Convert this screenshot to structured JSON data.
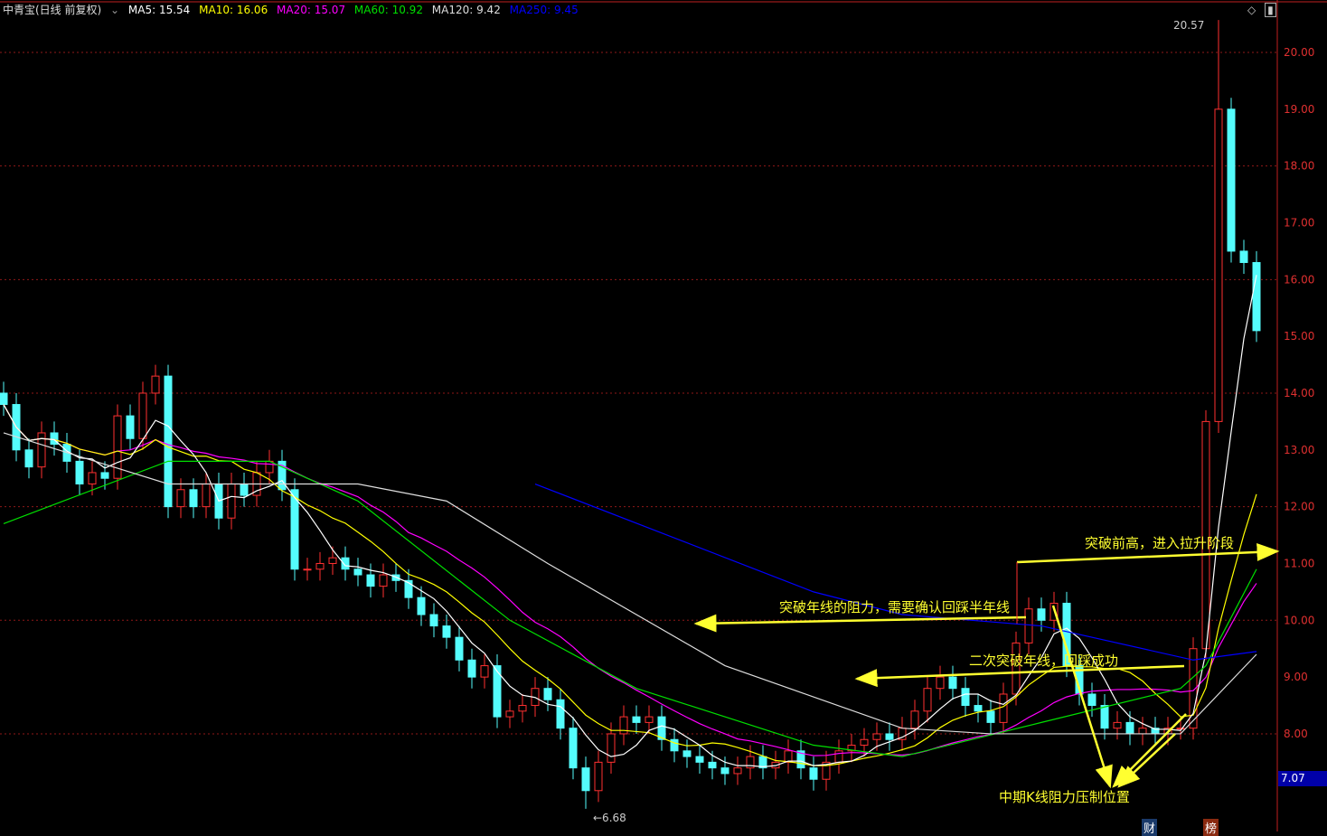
{
  "header": {
    "title": "中青宝(日线 前复权)",
    "ma": [
      {
        "label": "MA5: 15.54",
        "color": "#ffffff"
      },
      {
        "label": "MA10: 16.06",
        "color": "#ffff00"
      },
      {
        "label": "MA20: 15.07",
        "color": "#ff00ff"
      },
      {
        "label": "MA60: 10.92",
        "color": "#00e000"
      },
      {
        "label": "MA120: 9.42",
        "color": "#dddddd"
      },
      {
        "label": "MA250: 9.45",
        "color": "#0000ff"
      }
    ]
  },
  "icons": {
    "diamond": "◇",
    "panel": "▮"
  },
  "current_price": "7.07",
  "badges": [
    "财",
    "榜"
  ],
  "chart_data": {
    "type": "candlestick",
    "ylim": [
      6.2,
      20.9
    ],
    "yticks": [
      "8.00",
      "9.00",
      "10.00",
      "11.00",
      "12.00",
      "13.00",
      "14.00",
      "15.00",
      "16.00",
      "17.00",
      "18.00",
      "19.00",
      "20.00"
    ],
    "grid_levels": [
      8,
      10,
      12,
      14,
      16,
      18,
      20
    ],
    "up_color": "#ff3030",
    "down_color": "#54fcfc",
    "close": [
      13.8,
      13.0,
      12.7,
      13.3,
      13.1,
      12.8,
      12.4,
      12.6,
      12.5,
      13.6,
      13.2,
      14.0,
      14.3,
      12.0,
      12.3,
      12.0,
      12.4,
      11.8,
      12.4,
      12.2,
      12.6,
      12.8,
      12.3,
      10.9,
      10.9,
      11.0,
      11.1,
      10.9,
      10.8,
      10.6,
      10.8,
      10.7,
      10.4,
      10.1,
      9.9,
      9.7,
      9.3,
      9.0,
      9.2,
      8.3,
      8.4,
      8.5,
      8.8,
      8.6,
      8.1,
      7.4,
      7.0,
      7.5,
      8.0,
      8.3,
      8.2,
      8.3,
      7.9,
      7.7,
      7.6,
      7.5,
      7.4,
      7.3,
      7.4,
      7.6,
      7.4,
      7.5,
      7.7,
      7.4,
      7.2,
      7.5,
      7.7,
      7.8,
      7.9,
      8.0,
      7.9,
      8.1,
      8.4,
      8.8,
      9.0,
      8.8,
      8.5,
      8.4,
      8.2,
      8.7,
      9.6,
      10.2,
      10.0,
      10.3,
      9.2,
      8.7,
      8.5,
      8.1,
      8.2,
      8.0,
      8.1,
      8.0,
      8.1,
      8.1,
      9.5,
      13.5,
      19.0,
      16.5,
      16.3,
      15.1
    ],
    "high_marker": {
      "label": "20.57",
      "value": 20.57,
      "index": 96
    },
    "low_marker": {
      "label": "6.68",
      "value": 6.68,
      "index": 46
    },
    "ma60": [
      [
        0,
        11.7
      ],
      [
        13,
        12.8
      ],
      [
        21,
        12.8
      ],
      [
        28,
        12.1
      ],
      [
        40,
        10.0
      ],
      [
        50,
        8.8
      ],
      [
        64,
        7.8
      ],
      [
        71,
        7.6
      ],
      [
        82,
        8.2
      ],
      [
        93,
        8.8
      ],
      [
        95,
        9.2
      ],
      [
        99,
        10.9
      ]
    ],
    "ma120": [
      [
        0,
        13.3
      ],
      [
        13,
        12.4
      ],
      [
        28,
        12.4
      ],
      [
        35,
        12.1
      ],
      [
        43,
        11.0
      ],
      [
        57,
        9.2
      ],
      [
        71,
        8.1
      ],
      [
        78,
        8.0
      ],
      [
        93,
        8.0
      ],
      [
        99,
        9.4
      ]
    ],
    "ma250": [
      [
        42,
        12.4
      ],
      [
        64,
        10.5
      ],
      [
        71,
        10.1
      ],
      [
        82,
        9.9
      ],
      [
        94,
        9.3
      ],
      [
        99,
        9.45
      ]
    ],
    "annotations": [
      {
        "text": "突破前高，进入拉升阶段"
      },
      {
        "text": "突破年线的阻力，需要确认回踩半年线"
      },
      {
        "text": "二次突破年线，回踩成功"
      },
      {
        "text": "中期K线阻力压制位置"
      }
    ]
  }
}
